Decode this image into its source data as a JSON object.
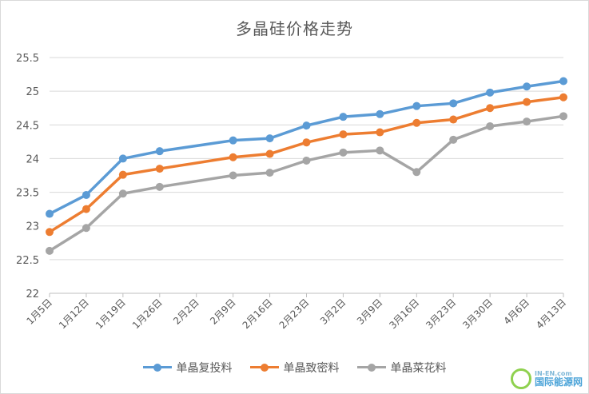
{
  "chart_data": {
    "type": "line",
    "title": "多晶硅价格走势",
    "xlabel": "",
    "ylabel": "",
    "categories": [
      "1月5日",
      "1月12日",
      "1月19日",
      "1月26日",
      "2月2日",
      "2月9日",
      "2月16日",
      "2月23日",
      "3月2日",
      "3月9日",
      "3月16日",
      "3月23日",
      "3月30日",
      "4月6日",
      "4月13日"
    ],
    "ylim": [
      22,
      25.5
    ],
    "yticks": [
      "22",
      "22.5",
      "23",
      "23.5",
      "24",
      "24.5",
      "25",
      "25.5"
    ],
    "grid": true,
    "legend_position": "bottom",
    "series": [
      {
        "name": "单晶复投料",
        "color": "#5b9bd5",
        "values": [
          23.18,
          23.46,
          24.0,
          24.11,
          null,
          24.27,
          24.3,
          24.49,
          24.62,
          24.66,
          24.78,
          24.82,
          24.98,
          25.07,
          25.15
        ]
      },
      {
        "name": "单晶致密料",
        "color": "#ed7d31",
        "values": [
          22.91,
          23.25,
          23.76,
          23.85,
          null,
          24.02,
          24.07,
          24.24,
          24.36,
          24.39,
          24.53,
          24.58,
          24.75,
          24.84,
          24.91
        ]
      },
      {
        "name": "单晶菜花料",
        "color": "#a5a5a5",
        "values": [
          22.63,
          22.97,
          23.48,
          23.58,
          null,
          23.75,
          23.79,
          23.97,
          24.09,
          24.12,
          23.8,
          24.28,
          24.48,
          24.55,
          24.63
        ]
      }
    ]
  },
  "watermark": {
    "en": "IN-EN.com",
    "cn": "国际能源网"
  }
}
